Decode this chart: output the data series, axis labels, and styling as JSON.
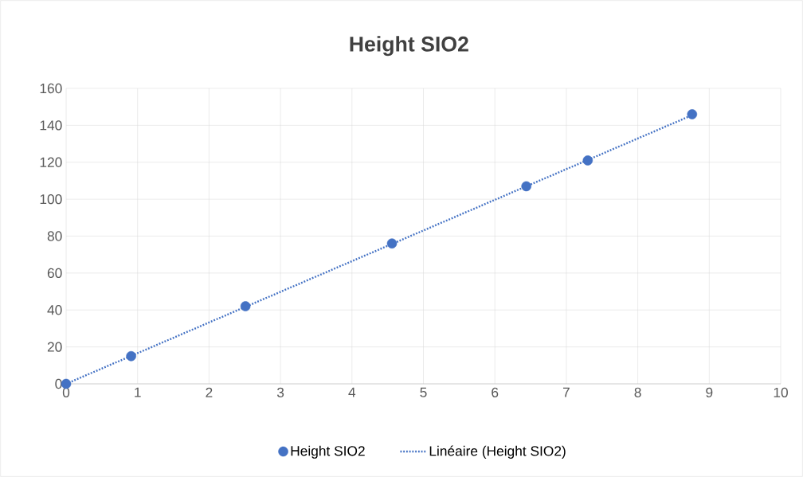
{
  "chart_data": {
    "type": "scatter",
    "title": "Height SIO2",
    "xlim": [
      0,
      10
    ],
    "xticks": [
      0,
      1,
      2,
      3,
      4,
      5,
      6,
      7,
      8,
      9,
      10
    ],
    "ylim": [
      0,
      160
    ],
    "yticks": [
      0,
      20,
      40,
      60,
      80,
      100,
      120,
      140,
      160
    ],
    "grid": true,
    "legend": "bottom",
    "series": [
      {
        "name": "Height SIO2",
        "type": "scatter",
        "color": "#4472c4",
        "marker": "circle",
        "x": [
          0,
          0.91,
          2.51,
          4.56,
          6.44,
          7.3,
          8.76
        ],
        "values": [
          0,
          15,
          42,
          76,
          107,
          121,
          146
        ]
      },
      {
        "name": "Linéaire (Height SIO2)",
        "type": "line",
        "color": "#4472c4",
        "marker": "none",
        "line_style": "dotted",
        "x": [
          0,
          8.76
        ],
        "values": [
          0,
          145.5
        ]
      }
    ]
  }
}
